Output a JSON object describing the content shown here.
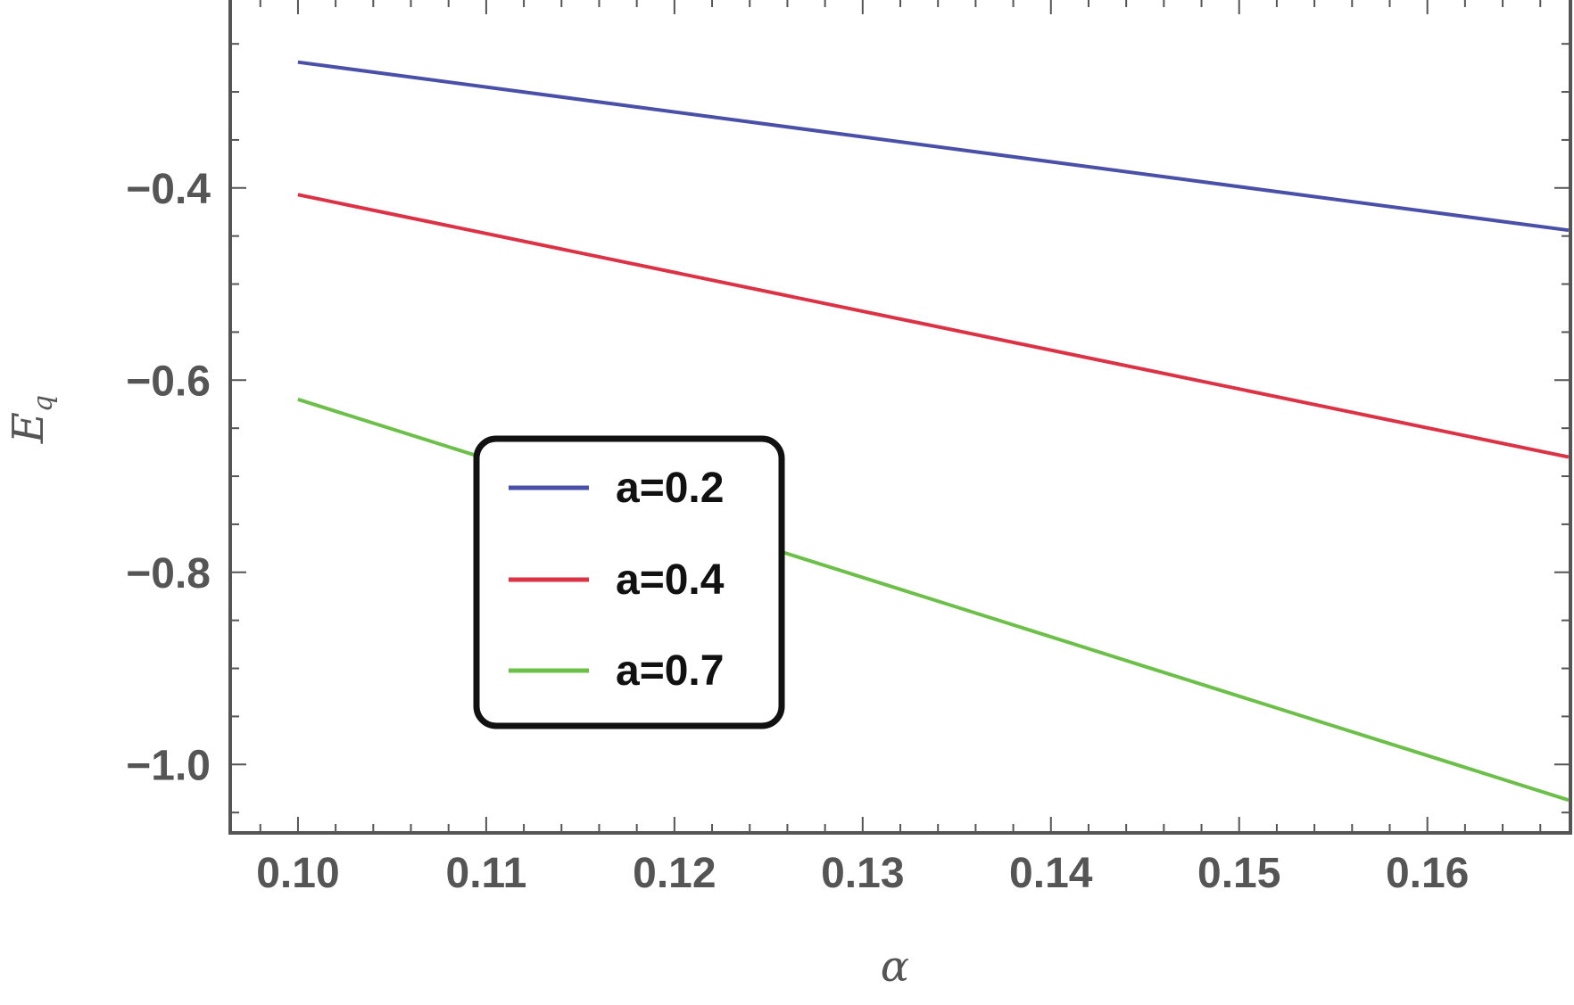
{
  "chart_data": {
    "type": "line",
    "xlabel": "α",
    "ylabel": {
      "main": "E",
      "subscript": "q"
    },
    "xlim": [
      0.0964,
      0.1676
    ],
    "ylim": [
      -1.0712,
      -0.2025
    ],
    "x_ticks": [
      0.1,
      0.11,
      0.12,
      0.13,
      0.14,
      0.15,
      0.16
    ],
    "x_tick_labels": [
      "0.10",
      "0.11",
      "0.12",
      "0.13",
      "0.14",
      "0.15",
      "0.16"
    ],
    "y_ticks": [
      -0.4,
      -0.6,
      -0.8,
      -1.0
    ],
    "y_tick_labels": [
      "−0.4",
      "−0.6",
      "−0.8",
      "−1.0"
    ],
    "grid": false,
    "legend_position": "center-left",
    "x": [
      0.1,
      0.1675
    ],
    "series": [
      {
        "name": "a=0.2",
        "color": "#4a50a8",
        "values": [
          -0.269,
          -0.444
        ]
      },
      {
        "name": "a=0.4",
        "color": "#dc3245",
        "values": [
          -0.407,
          -0.68
        ]
      },
      {
        "name": "a=0.7",
        "color": "#6cc04a",
        "values": [
          -0.62,
          -1.037
        ]
      }
    ]
  }
}
